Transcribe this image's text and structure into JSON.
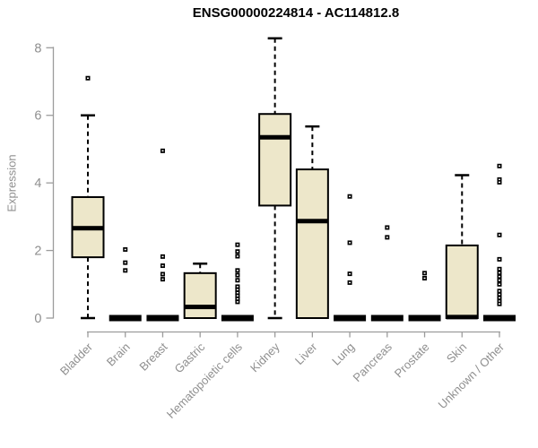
{
  "chart_data": {
    "type": "box",
    "title": "ENSG00000224814 - AC114812.8",
    "ylabel": "Expression",
    "xlabel": "",
    "ylim": [
      0,
      8
    ],
    "yticks": [
      0,
      2,
      4,
      6,
      8
    ],
    "grid": false,
    "legend": "none",
    "categories": [
      "Bladder",
      "Brain",
      "Breast",
      "Gastric",
      "Hematopoietic cells",
      "Kidney",
      "Liver",
      "Lung",
      "Pancreas",
      "Prostate",
      "Skin",
      "Unknown / Other"
    ],
    "boxes": [
      {
        "category": "Bladder",
        "whisker_low": 0,
        "q1": 1.8,
        "median": 2.66,
        "q3": 3.58,
        "whisker_high": 6.0,
        "outliers": [
          7.1
        ]
      },
      {
        "category": "Brain",
        "whisker_low": 0,
        "q1": 0,
        "median": 0,
        "q3": 0,
        "whisker_high": 0,
        "outliers": [
          2.03,
          1.64,
          1.41
        ]
      },
      {
        "category": "Breast",
        "whisker_low": 0,
        "q1": 0,
        "median": 0,
        "q3": 0,
        "whisker_high": 0,
        "outliers": [
          4.95,
          1.82,
          1.55,
          1.3,
          1.15
        ]
      },
      {
        "category": "Gastric",
        "whisker_low": 0,
        "q1": 0,
        "median": 0.33,
        "q3": 1.33,
        "whisker_high": 1.61,
        "outliers": []
      },
      {
        "category": "Hematopoietic cells",
        "whisker_low": 0,
        "q1": 0,
        "median": 0,
        "q3": 0,
        "whisker_high": 0,
        "outliers": [
          2.17,
          1.97,
          1.83,
          1.41,
          1.27,
          1.12,
          0.93,
          0.84,
          0.75,
          0.66,
          0.57,
          0.48
        ]
      },
      {
        "category": "Kidney",
        "whisker_low": 0,
        "q1": 3.33,
        "median": 5.35,
        "q3": 6.04,
        "whisker_high": 8.28,
        "outliers": []
      },
      {
        "category": "Liver",
        "whisker_low": 0,
        "q1": 0,
        "median": 2.87,
        "q3": 4.4,
        "whisker_high": 5.67,
        "outliers": []
      },
      {
        "category": "Lung",
        "whisker_low": 0,
        "q1": 0,
        "median": 0,
        "q3": 0,
        "whisker_high": 0,
        "outliers": [
          3.6,
          2.23,
          1.31,
          1.05
        ]
      },
      {
        "category": "Pancreas",
        "whisker_low": 0,
        "q1": 0,
        "median": 0,
        "q3": 0,
        "whisker_high": 0,
        "outliers": [
          2.68,
          2.39
        ]
      },
      {
        "category": "Prostate",
        "whisker_low": 0,
        "q1": 0,
        "median": 0,
        "q3": 0,
        "whisker_high": 0,
        "outliers": [
          1.33,
          1.18
        ]
      },
      {
        "category": "Skin",
        "whisker_low": 0,
        "q1": 0,
        "median": 0.03,
        "q3": 2.15,
        "whisker_high": 4.23,
        "outliers": []
      },
      {
        "category": "Unknown / Other",
        "whisker_low": 0,
        "q1": 0,
        "median": 0,
        "q3": 0,
        "whisker_high": 0,
        "outliers": [
          4.5,
          4.1,
          4.02,
          2.46,
          1.74,
          1.45,
          1.34,
          1.23,
          1.12,
          1.0,
          0.8,
          0.7,
          0.6,
          0.5,
          0.42
        ]
      }
    ],
    "colors": {
      "box_fill": "#EDE7CA",
      "box_border": "#000000",
      "median": "#000000",
      "whisker": "#000000",
      "outlier": "#000000",
      "axis_line": "#9c9c9c",
      "tick_text": "#8f8f8f",
      "title_text": "#000000",
      "background": "#ffffff"
    }
  }
}
